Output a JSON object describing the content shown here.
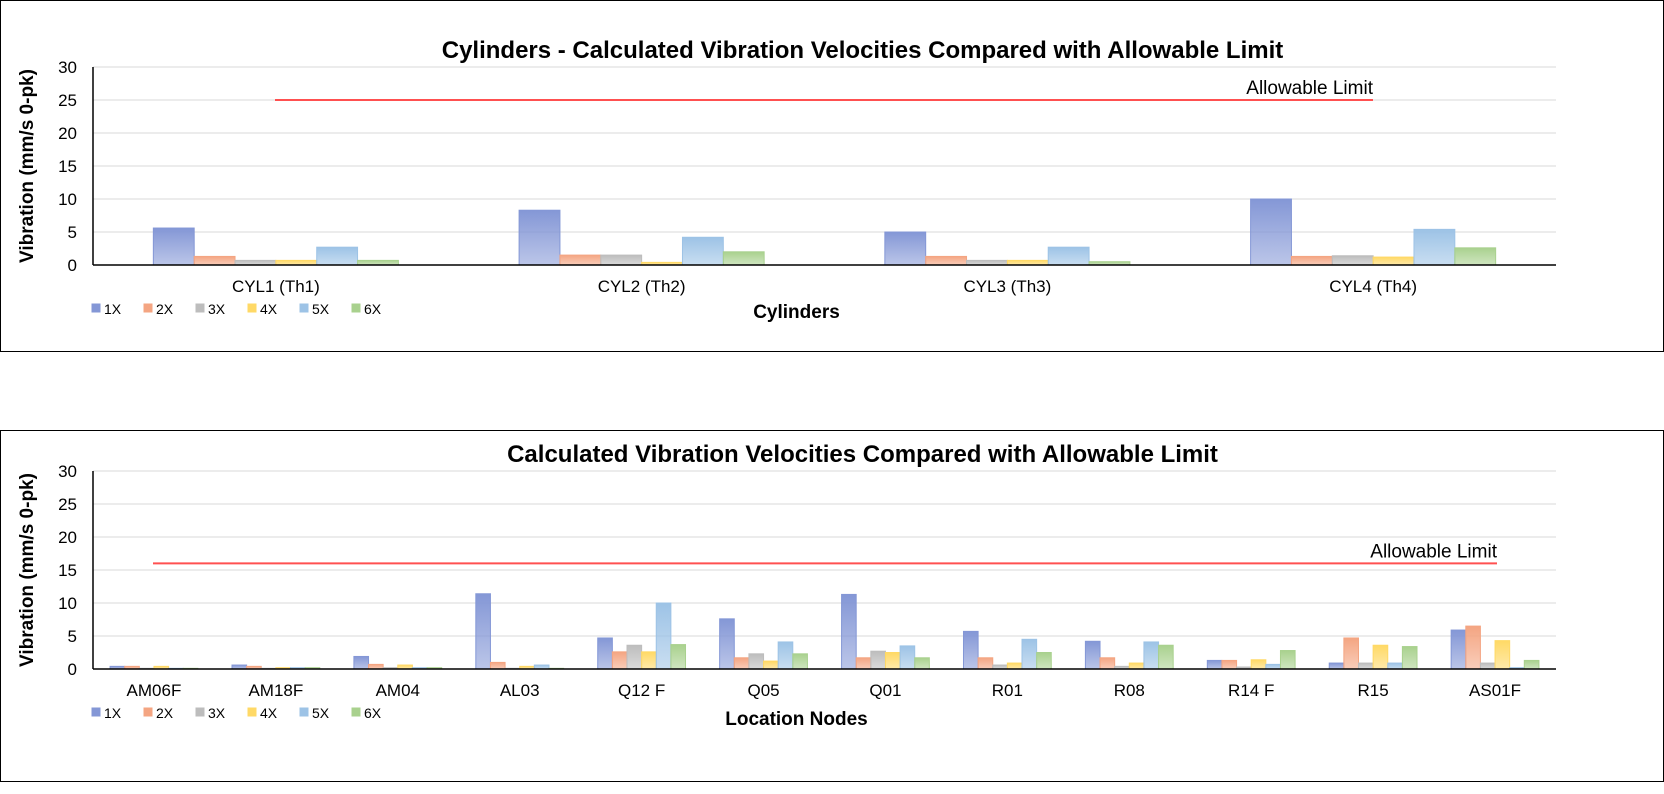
{
  "colors": {
    "series": [
      "#8497D6",
      "#F4A582",
      "#BDBDBD",
      "#FFD966",
      "#9DC3E6",
      "#A9D18E"
    ],
    "limit": "#FF5050"
  },
  "chart_data": [
    {
      "type": "bar",
      "title": "Cylinders - Calculated Vibration Velocities Compared with Allowable Limit",
      "xlabel": "Cylinders",
      "ylabel": "Vibration (mm/s 0-pk)",
      "ylim": [
        0,
        30
      ],
      "yticks": [
        "0",
        "5",
        "10",
        "15",
        "20",
        "25",
        "30"
      ],
      "grid": true,
      "legend_position": "bottom-left",
      "categories": [
        "CYL1 (Th1)",
        "CYL2 (Th2)",
        "CYL3 (Th3)",
        "CYL4 (Th4)"
      ],
      "series": [
        {
          "name": "1X",
          "values": [
            5.6,
            8.3,
            5.0,
            10.0
          ]
        },
        {
          "name": "2X",
          "values": [
            1.3,
            1.5,
            1.3,
            1.3
          ]
        },
        {
          "name": "3X",
          "values": [
            0.7,
            1.5,
            0.7,
            1.4
          ]
        },
        {
          "name": "4X",
          "values": [
            0.7,
            0.4,
            0.7,
            1.2
          ]
        },
        {
          "name": "5X",
          "values": [
            2.7,
            4.2,
            2.7,
            5.4
          ]
        },
        {
          "name": "6X",
          "values": [
            0.7,
            2.0,
            0.5,
            2.6
          ]
        }
      ],
      "limit": {
        "label": "Allowable Limit",
        "value": 25
      }
    },
    {
      "type": "bar",
      "title": "Calculated Vibration Velocities Compared with Allowable Limit",
      "xlabel": "Location Nodes",
      "ylabel": "Vibration (mm/s 0-pk)",
      "ylim": [
        0,
        30
      ],
      "yticks": [
        "0",
        "5",
        "10",
        "15",
        "20",
        "25",
        "30"
      ],
      "grid": true,
      "legend_position": "bottom-left",
      "categories": [
        "AM06F",
        "AM18F",
        "AM04",
        "AL03",
        "Q12 F",
        "Q05",
        "Q01",
        "R01",
        "R08",
        "R14 F",
        "R15",
        "AS01F"
      ],
      "series": [
        {
          "name": "1X",
          "values": [
            0.4,
            0.6,
            1.9,
            11.4,
            4.7,
            7.6,
            11.3,
            5.7,
            4.2,
            1.3,
            0.9,
            5.9
          ]
        },
        {
          "name": "2X",
          "values": [
            0.4,
            0.4,
            0.7,
            1.0,
            2.6,
            1.7,
            1.7,
            1.7,
            1.7,
            1.3,
            4.7,
            6.5
          ]
        },
        {
          "name": "3X",
          "values": [
            0.1,
            0.1,
            0.2,
            0.1,
            3.6,
            2.3,
            2.7,
            0.6,
            0.4,
            0.3,
            0.9,
            0.9
          ]
        },
        {
          "name": "4X",
          "values": [
            0.4,
            0.2,
            0.6,
            0.4,
            2.6,
            1.2,
            2.5,
            0.9,
            0.9,
            1.4,
            3.6,
            4.3
          ]
        },
        {
          "name": "5X",
          "values": [
            0.1,
            0.2,
            0.2,
            0.6,
            10.0,
            4.1,
            3.5,
            4.5,
            4.1,
            0.7,
            0.9,
            0.2
          ]
        },
        {
          "name": "6X",
          "values": [
            0.1,
            0.2,
            0.2,
            0.1,
            3.7,
            2.3,
            1.7,
            2.5,
            3.6,
            2.8,
            3.4,
            1.3
          ]
        }
      ],
      "limit": {
        "label": "Allowable Limit",
        "value": 16
      }
    }
  ]
}
